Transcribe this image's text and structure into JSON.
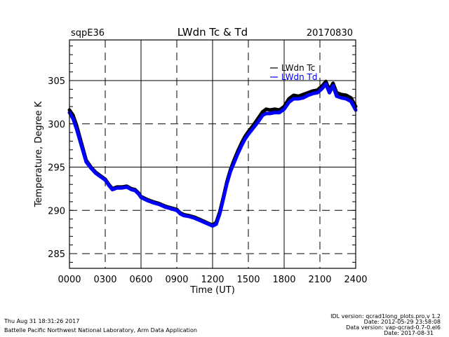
{
  "chart_data": {
    "type": "line",
    "site": "sqpE36",
    "title": "LWdn Tc & Td",
    "date": "20170830",
    "xlabel": "Time (UT)",
    "ylabel": "Temperature, Degree K",
    "xlim": [
      0,
      24
    ],
    "ylim": [
      283.3,
      309.7
    ],
    "x_ticks": [
      0,
      3,
      6,
      9,
      12,
      15,
      18,
      21,
      24
    ],
    "x_tick_labels": [
      "0000",
      "0300",
      "0600",
      "0900",
      "1200",
      "1500",
      "1800",
      "2100",
      "2400"
    ],
    "y_ticks": [
      285,
      290,
      295,
      300,
      305
    ],
    "y_tick_labels": [
      "285",
      "290",
      "295",
      "300",
      "305"
    ],
    "grid": true,
    "legend_position": "top-right",
    "series": [
      {
        "name": "LWdn Tc",
        "color": "#000000",
        "x": [
          0,
          0.3,
          0.6,
          1.0,
          1.4,
          1.8,
          2.2,
          2.6,
          3.0,
          3.3,
          3.6,
          4.0,
          4.4,
          4.8,
          5.2,
          5.5,
          5.8,
          6.0,
          6.3,
          6.6,
          7.0,
          7.5,
          8.0,
          8.5,
          9.0,
          9.3,
          9.6,
          10.0,
          10.5,
          11.0,
          11.5,
          12.0,
          12.3,
          12.6,
          12.9,
          13.2,
          13.5,
          13.8,
          14.1,
          14.4,
          14.7,
          15.0,
          15.4,
          15.8,
          16.2,
          16.5,
          16.8,
          17.2,
          17.6,
          18.0,
          18.4,
          18.8,
          19.2,
          19.6,
          20.0,
          20.4,
          20.8,
          21.2,
          21.5,
          21.8,
          22.1,
          22.4,
          22.8,
          23.2,
          23.6,
          24.0
        ],
        "y": [
          301.6,
          301.0,
          299.8,
          297.8,
          295.8,
          295.0,
          294.4,
          294.0,
          293.6,
          293.0,
          292.5,
          292.7,
          292.7,
          292.8,
          292.5,
          292.4,
          292.0,
          291.6,
          291.4,
          291.2,
          291.0,
          290.8,
          290.5,
          290.3,
          290.1,
          289.7,
          289.5,
          289.4,
          289.2,
          288.9,
          288.6,
          288.3,
          288.6,
          289.8,
          291.5,
          293.3,
          294.7,
          295.8,
          296.8,
          297.7,
          298.5,
          299.1,
          299.8,
          300.6,
          301.4,
          301.7,
          301.6,
          301.7,
          301.6,
          302.0,
          302.9,
          303.3,
          303.2,
          303.4,
          303.6,
          303.8,
          303.9,
          304.4,
          304.9,
          303.9,
          304.7,
          303.6,
          303.4,
          303.3,
          303.0,
          302.0
        ],
        "visible": true
      },
      {
        "name": "LWdn Td",
        "color": "#0000ff",
        "x": [
          0,
          0.3,
          0.6,
          1.0,
          1.4,
          1.8,
          2.2,
          2.6,
          3.0,
          3.3,
          3.6,
          4.0,
          4.4,
          4.8,
          5.2,
          5.5,
          5.8,
          6.0,
          6.3,
          6.6,
          7.0,
          7.5,
          8.0,
          8.5,
          9.0,
          9.3,
          9.6,
          10.0,
          10.5,
          11.0,
          11.5,
          12.0,
          12.3,
          12.6,
          12.9,
          13.2,
          13.5,
          13.8,
          14.1,
          14.4,
          14.7,
          15.0,
          15.4,
          15.8,
          16.2,
          16.5,
          16.8,
          17.2,
          17.6,
          18.0,
          18.4,
          18.8,
          19.2,
          19.6,
          20.0,
          20.4,
          20.8,
          21.2,
          21.5,
          21.8,
          22.1,
          22.4,
          22.8,
          23.2,
          23.6,
          24.0
        ],
        "y": [
          301.3,
          300.6,
          299.4,
          297.5,
          295.6,
          294.9,
          294.3,
          293.9,
          293.5,
          292.9,
          292.4,
          292.6,
          292.6,
          292.7,
          292.4,
          292.3,
          291.9,
          291.5,
          291.3,
          291.1,
          290.9,
          290.7,
          290.4,
          290.2,
          290.0,
          289.6,
          289.4,
          289.3,
          289.1,
          288.8,
          288.5,
          288.2,
          288.4,
          289.6,
          291.3,
          293.1,
          294.5,
          295.5,
          296.5,
          297.4,
          298.2,
          298.8,
          299.5,
          300.2,
          301.0,
          301.2,
          301.2,
          301.3,
          301.3,
          301.7,
          302.5,
          302.9,
          302.9,
          303.0,
          303.3,
          303.5,
          303.6,
          304.1,
          304.6,
          303.6,
          304.4,
          303.2,
          303.0,
          302.9,
          302.6,
          301.6
        ],
        "visible": true
      }
    ]
  },
  "footer": {
    "timestamp": "Thu Aug 31 18:31:26 2017",
    "organization": "Battelle Pacific Northwest National Laboratory, Arm Data Application",
    "idl_version": "IDL version: qcrad1long_plots.pro,v 1.2",
    "idl_date": "Date: 2012-05-29 23:58:08",
    "data_version": "Data version: vap-qcrad-0.7-0.el6",
    "data_date": "Date: 2017-08-31"
  }
}
